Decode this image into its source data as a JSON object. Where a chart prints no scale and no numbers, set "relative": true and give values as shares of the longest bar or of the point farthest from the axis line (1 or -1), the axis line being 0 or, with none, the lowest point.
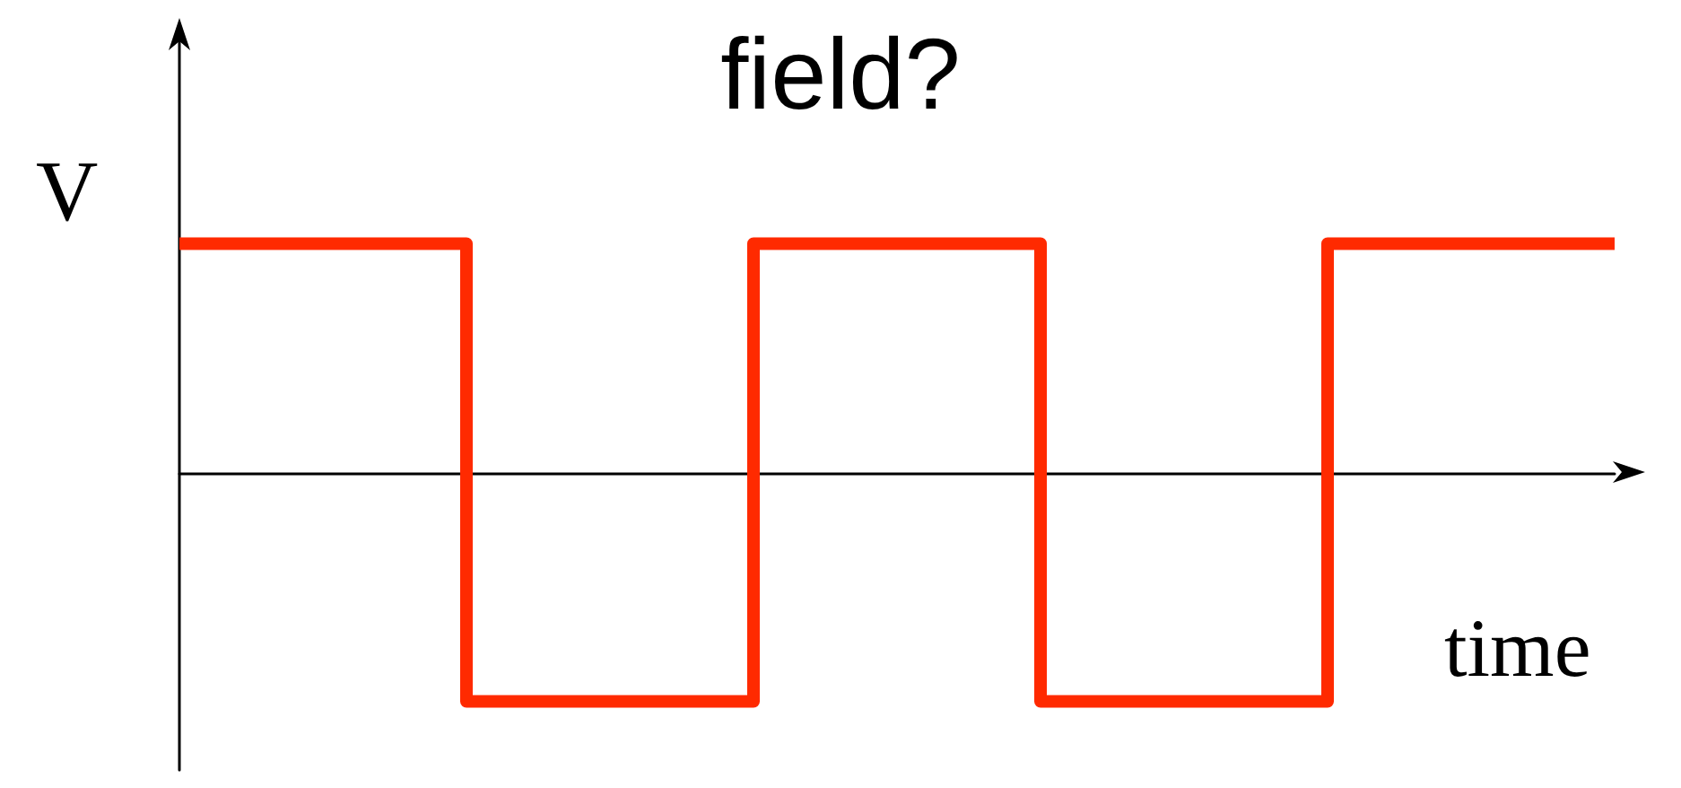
{
  "chart_data": {
    "type": "step",
    "title": "field?",
    "xlabel": "time",
    "ylabel": "V",
    "categories": [
      null,
      null,
      null,
      null,
      null,
      null
    ],
    "values": [
      1,
      -1,
      1,
      -1,
      1,
      1
    ],
    "color": "#ff2a00",
    "relative": true
  }
}
